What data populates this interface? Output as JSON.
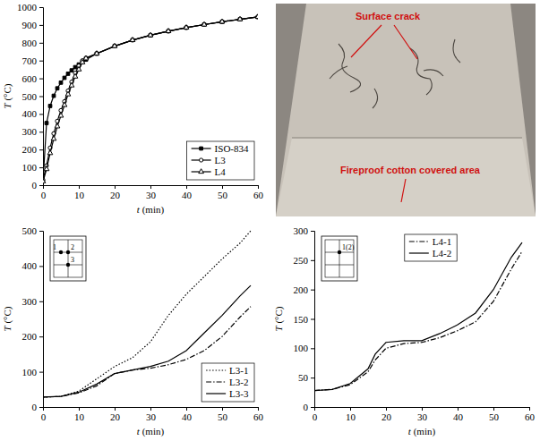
{
  "chart_data": [
    {
      "type": "line",
      "x_label": "t (min)",
      "y_label": "T (°C)",
      "x": [
        0,
        1,
        2,
        3,
        4,
        5,
        6,
        7,
        8,
        9,
        10,
        11,
        12,
        15,
        20,
        25,
        30,
        35,
        40,
        45,
        50,
        55,
        60
      ],
      "series": [
        {
          "name": "ISO-834",
          "color": "#000000",
          "marker": "square",
          "line_style": "solid",
          "values": [
            20,
            349,
            445,
            502,
            544,
            576,
            603,
            626,
            645,
            663,
            678,
            693,
            705,
            739,
            781,
            815,
            842,
            865,
            885,
            902,
            918,
            932,
            945
          ]
        },
        {
          "name": "L3",
          "color": "#000000",
          "marker": "circle",
          "line_style": "solid",
          "values": [
            30,
            110,
            210,
            290,
            360,
            420,
            470,
            530,
            580,
            630,
            670,
            700,
            715,
            740,
            781,
            815,
            842,
            865,
            885,
            902,
            918,
            932,
            945
          ]
        },
        {
          "name": "L4",
          "color": "#000000",
          "marker": "triangle",
          "line_style": "solid",
          "values": [
            20,
            90,
            180,
            260,
            330,
            390,
            450,
            510,
            560,
            610,
            650,
            690,
            712,
            739,
            781,
            815,
            842,
            865,
            885,
            902,
            918,
            932,
            945
          ]
        }
      ],
      "xlim": [
        0,
        60
      ],
      "xticks": [
        0,
        10,
        20,
        30,
        40,
        50,
        60
      ],
      "ylim": [
        0,
        1000
      ],
      "yticks": [
        0,
        100,
        200,
        300,
        400,
        500,
        600,
        700,
        800,
        900,
        1000
      ],
      "grid": false,
      "legend": "lower right"
    },
    {
      "type": "line",
      "x_label": "t (min)",
      "y_label": "T (°C)",
      "inset_labels": [
        "1",
        "2",
        "3"
      ],
      "x": [
        0,
        5,
        10,
        15,
        20,
        25,
        30,
        35,
        40,
        45,
        50,
        55,
        58
      ],
      "series": [
        {
          "name": "L3-1",
          "color": "#000000",
          "line_style": "dotted",
          "values": [
            28,
            30,
            45,
            80,
            115,
            140,
            185,
            260,
            320,
            370,
            420,
            465,
            500
          ]
        },
        {
          "name": "L3-2",
          "color": "#000000",
          "line_style": "dashdot",
          "values": [
            28,
            30,
            40,
            60,
            95,
            105,
            110,
            120,
            135,
            160,
            200,
            255,
            285
          ]
        },
        {
          "name": "L3-3",
          "color": "#000000",
          "line_style": "solid",
          "values": [
            28,
            30,
            42,
            65,
            95,
            105,
            115,
            130,
            160,
            210,
            260,
            315,
            345
          ]
        }
      ],
      "xlim": [
        0,
        60
      ],
      "xticks": [
        0,
        10,
        20,
        30,
        40,
        50,
        60
      ],
      "ylim": [
        0,
        500
      ],
      "yticks": [
        0,
        100,
        200,
        300,
        400,
        500
      ],
      "grid": false,
      "legend": "lower right"
    },
    {
      "type": "line",
      "x_label": "t (min)",
      "y_label": "T (°C)",
      "inset_labels": [
        "1(2)"
      ],
      "x": [
        0,
        5,
        10,
        15,
        17,
        20,
        25,
        30,
        35,
        40,
        45,
        50,
        55,
        58
      ],
      "series": [
        {
          "name": "L4-1",
          "color": "#000000",
          "line_style": "dashdot",
          "values": [
            28,
            30,
            38,
            60,
            80,
            100,
            108,
            110,
            118,
            130,
            145,
            180,
            235,
            265
          ]
        },
        {
          "name": "L4-2",
          "color": "#000000",
          "line_style": "solid",
          "values": [
            28,
            30,
            40,
            65,
            90,
            110,
            113,
            113,
            125,
            140,
            160,
            200,
            255,
            280
          ]
        }
      ],
      "xlim": [
        0,
        60
      ],
      "xticks": [
        0,
        10,
        20,
        30,
        40,
        50,
        60
      ],
      "ylim": [
        0,
        300
      ],
      "yticks": [
        0,
        50,
        100,
        150,
        200,
        250,
        300
      ],
      "grid": false,
      "legend": "upper center"
    }
  ],
  "photo": {
    "labels": [
      "Surface crack",
      "Fireproof cotton covered area"
    ]
  }
}
